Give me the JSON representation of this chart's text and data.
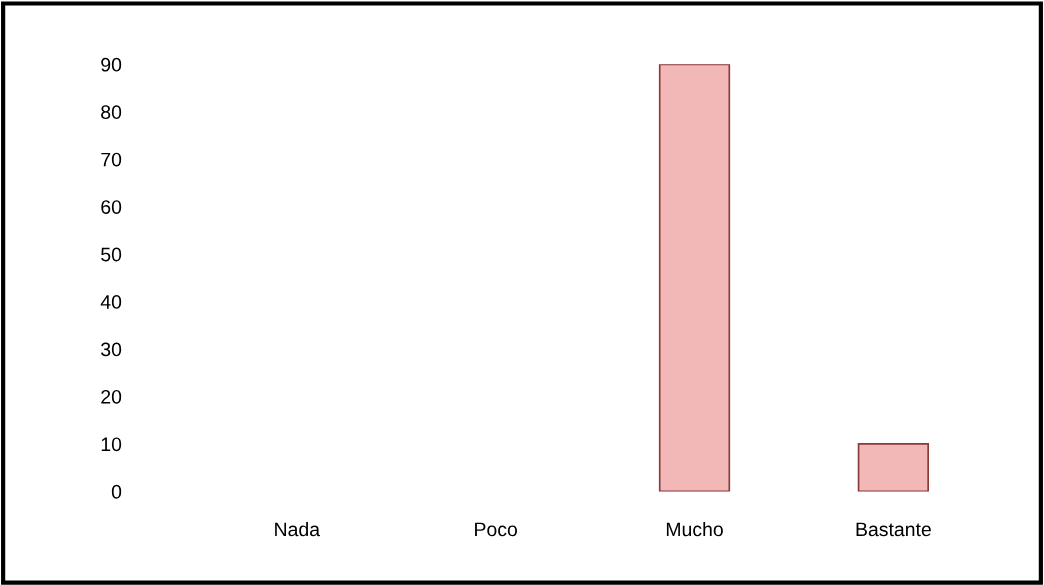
{
  "chart_data": {
    "type": "bar",
    "categories": [
      "Nada",
      "Poco",
      "Mucho",
      "Bastante"
    ],
    "values": [
      0,
      0,
      90,
      10
    ],
    "color": "#f2b8b8",
    "ylim": [
      0,
      90
    ],
    "yticks": [
      0,
      10,
      20,
      30,
      40,
      50,
      60,
      70,
      80,
      90
    ],
    "grid": false
  }
}
